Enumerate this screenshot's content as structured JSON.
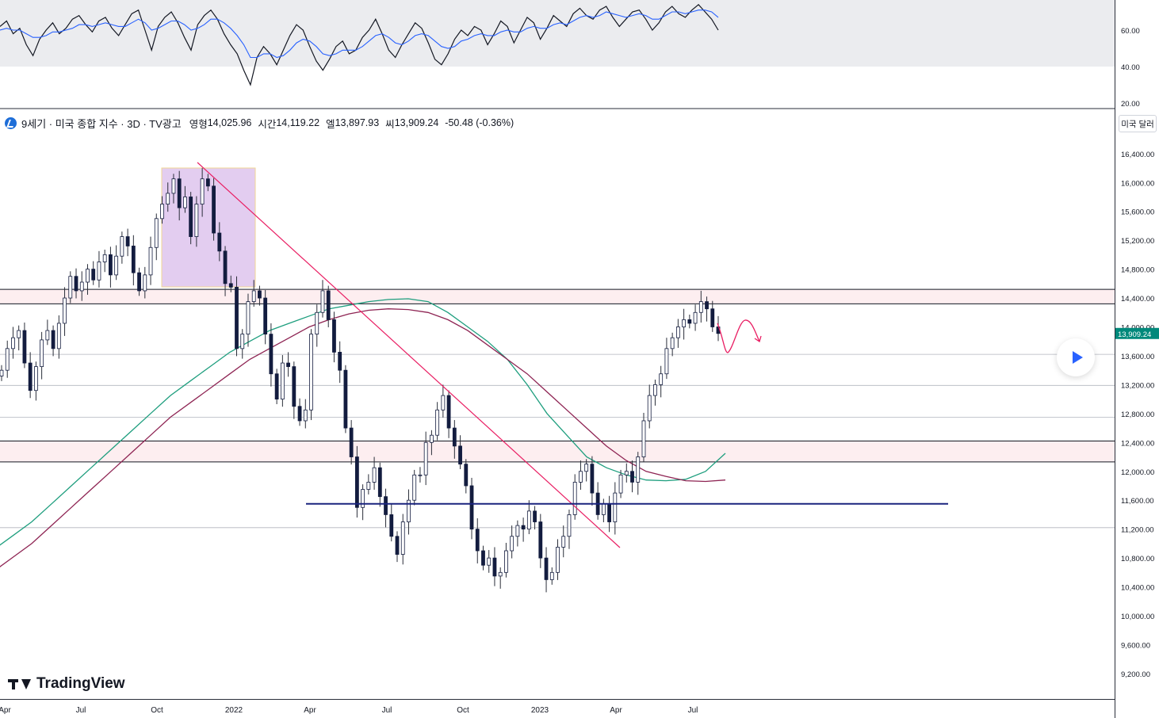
{
  "legend": {
    "title": "9세기 · 미국 종합 지수 · 3D · TV광고",
    "open_label": "영형",
    "open_value": "14,025.96",
    "high_label": "시간",
    "high_value": "14,119.22",
    "low_label": "엘",
    "low_value": "13,897.93",
    "close_label": "씨",
    "close_value": "13,909.24",
    "change": "-50.48 (-0.36%)"
  },
  "currency_button": "미국 달러",
  "last_price_tag": "13,909.24",
  "brand": "TradingView",
  "chart_data": [
    {
      "type": "line",
      "name": "oscillator",
      "y_ticks": [
        "60.00",
        "40.00",
        "20.00"
      ],
      "ylim": [
        18,
        77
      ],
      "band": [
        40,
        77
      ],
      "series": [
        {
          "values": [
            62,
            65,
            58,
            61,
            52,
            46,
            55,
            60,
            64,
            58,
            61,
            66,
            68,
            63,
            59,
            65,
            67,
            61,
            57,
            63,
            69,
            71,
            60,
            49,
            62,
            67,
            70,
            64,
            56,
            49,
            63,
            68,
            71,
            66,
            58,
            52,
            47,
            38,
            30,
            45,
            51,
            47,
            41,
            49,
            57,
            63,
            60,
            51,
            43,
            38,
            44,
            51,
            54,
            47,
            49,
            56,
            60,
            66,
            58,
            49,
            45,
            52,
            58,
            64,
            61,
            53,
            44,
            41,
            47,
            55,
            60,
            57,
            62,
            60,
            52,
            58,
            65,
            62,
            53,
            60,
            67,
            64,
            55,
            61,
            68,
            65,
            62,
            69,
            72,
            68,
            66,
            71,
            73,
            67,
            62,
            66,
            70,
            71,
            66,
            60,
            64,
            70,
            73,
            69,
            67,
            71,
            74,
            70,
            66,
            60
          ]
        },
        {
          "values": [
            60,
            61,
            60,
            60,
            58,
            56,
            56,
            57,
            59,
            59,
            60,
            61,
            63,
            63,
            62,
            63,
            64,
            63,
            62,
            62,
            64,
            66,
            64,
            60,
            61,
            63,
            65,
            65,
            63,
            60,
            61,
            63,
            66,
            66,
            64,
            61,
            57,
            52,
            45,
            45,
            47,
            47,
            45,
            46,
            49,
            53,
            55,
            54,
            51,
            47,
            46,
            47,
            49,
            49,
            49,
            51,
            54,
            57,
            58,
            56,
            53,
            52,
            54,
            57,
            58,
            57,
            54,
            51,
            50,
            51,
            54,
            55,
            57,
            58,
            57,
            57,
            59,
            60,
            59,
            59,
            61,
            62,
            61,
            61,
            63,
            64,
            63,
            65,
            67,
            68,
            67,
            68,
            70,
            69,
            68,
            67,
            68,
            69,
            68,
            66,
            66,
            68,
            70,
            70,
            69,
            70,
            71,
            71,
            70,
            67
          ]
        }
      ]
    },
    {
      "type": "candlestick",
      "name": "price",
      "ylim": [
        9050,
        16700
      ],
      "y_ticks": [
        "16,400.00",
        "16,000.00",
        "15,600.00",
        "15,200.00",
        "14,800.00",
        "14,400.00",
        "14,000.00",
        "13,600.00",
        "13,200.00",
        "12,800.00",
        "12,400.00",
        "12,000.00",
        "11,600.00",
        "11,200.00",
        "10,800.00",
        "10,400.00",
        "10,000.00",
        "9,600.00",
        "9,200.00"
      ],
      "x_labels": [
        "Apr",
        "Jul",
        "Oct",
        "2022",
        "Apr",
        "Jul",
        "Oct",
        "2023",
        "Apr",
        "Jul"
      ],
      "close": [
        13400,
        13700,
        13850,
        13950,
        13500,
        13120,
        13450,
        13820,
        13950,
        13700,
        14050,
        14400,
        14700,
        14500,
        14620,
        14800,
        14650,
        14900,
        15000,
        14720,
        14980,
        15250,
        15120,
        14750,
        14500,
        14720,
        15100,
        15500,
        15700,
        15850,
        16050,
        15650,
        15800,
        15250,
        15700,
        16050,
        15950,
        15300,
        15050,
        14600,
        14550,
        13700,
        13900,
        14350,
        14500,
        14400,
        13900,
        13350,
        13000,
        13500,
        13450,
        12900,
        12700,
        12850,
        13900,
        14200,
        14500,
        14100,
        13650,
        13400,
        12600,
        12200,
        11500,
        11750,
        11850,
        12050,
        11650,
        11400,
        11100,
        10850,
        11300,
        11600,
        11950,
        11950,
        12400,
        12500,
        12850,
        13050,
        12600,
        12350,
        12100,
        11800,
        11200,
        10900,
        10700,
        10800,
        10550,
        10600,
        10900,
        11100,
        11250,
        11200,
        11450,
        11300,
        10800,
        10500,
        10600,
        10950,
        11100,
        11400,
        11850,
        12000,
        12100,
        11700,
        11400,
        11550,
        11300,
        11700,
        11950,
        12000,
        11850,
        12200,
        12700,
        13050,
        13200,
        13350,
        13700,
        13850,
        14000,
        14100,
        14050,
        14200,
        14350,
        14250,
        14000,
        13909
      ],
      "ma_short": [
        10900,
        11100,
        11300,
        11550,
        11800,
        12050,
        12300,
        12550,
        12800,
        13050,
        13250,
        13450,
        13650,
        13800,
        13950,
        14050,
        14150,
        14250,
        14300,
        14350,
        14380,
        14390,
        14350,
        14200,
        14000,
        13800,
        13550,
        13200,
        12800,
        12500,
        12200,
        12050,
        11950,
        11880,
        11870,
        11890,
        12000,
        12250
      ],
      "ma_long": [
        10600,
        10800,
        11000,
        11250,
        11500,
        11750,
        12000,
        12250,
        12500,
        12750,
        12950,
        13150,
        13350,
        13550,
        13700,
        13850,
        14000,
        14100,
        14180,
        14230,
        14250,
        14240,
        14200,
        14100,
        13950,
        13750,
        13550,
        13350,
        13100,
        12850,
        12600,
        12350,
        12150,
        12000,
        11930,
        11870,
        11860,
        11880
      ],
      "support_line": 11550,
      "resistance_zone": [
        14320,
        14520
      ],
      "support_zone": [
        12130,
        12420
      ],
      "ref_levels": [
        13620,
        13190,
        12750,
        11220
      ]
    }
  ]
}
